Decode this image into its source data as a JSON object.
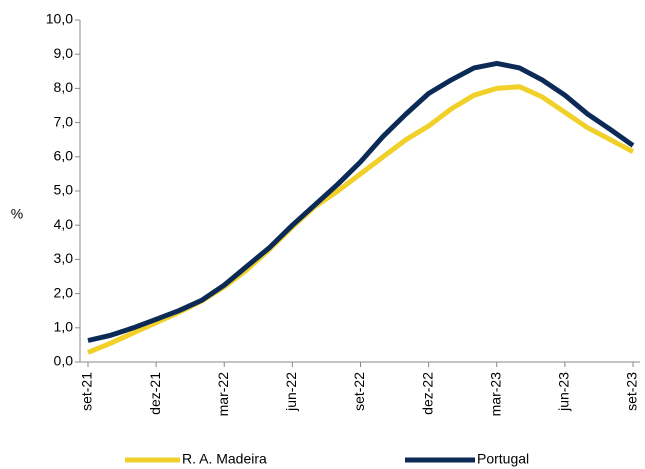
{
  "chart_data": {
    "type": "line",
    "y_label": "%",
    "categories": [
      "set-21",
      null,
      null,
      "dez-21",
      null,
      null,
      "mar-22",
      null,
      null,
      "jun-22",
      null,
      null,
      "set-22",
      null,
      null,
      "dez-22",
      null,
      null,
      "mar-23",
      null,
      null,
      "jun-23",
      null,
      null,
      "set-23"
    ],
    "series": [
      {
        "name": "R. A. Madeira",
        "color": "#f2d02a",
        "values": [
          0.28,
          0.55,
          0.85,
          1.15,
          1.45,
          1.78,
          2.2,
          2.7,
          3.3,
          3.95,
          4.55,
          5.0,
          5.5,
          6.0,
          6.5,
          6.9,
          7.4,
          7.8,
          8.0,
          8.05,
          7.75,
          7.3,
          6.85,
          6.5,
          6.15
        ]
      },
      {
        "name": "Portugal",
        "color": "#0c2a56",
        "values": [
          0.63,
          0.78,
          1.0,
          1.25,
          1.5,
          1.8,
          2.25,
          2.8,
          3.35,
          4.0,
          4.6,
          5.2,
          5.85,
          6.6,
          7.25,
          7.85,
          8.25,
          8.6,
          8.73,
          8.6,
          8.25,
          7.8,
          7.25,
          6.8,
          6.33
        ]
      }
    ],
    "ylim": [
      0,
      10
    ],
    "yticks": [
      {
        "value": 0,
        "label": "0,0"
      },
      {
        "value": 1,
        "label": "1,0"
      },
      {
        "value": 2,
        "label": "2,0"
      },
      {
        "value": 3,
        "label": "3,0"
      },
      {
        "value": 4,
        "label": "4,0"
      },
      {
        "value": 5,
        "label": "5,0"
      },
      {
        "value": 6,
        "label": "6,0"
      },
      {
        "value": 7,
        "label": "7,0"
      },
      {
        "value": 8,
        "label": "8,0"
      },
      {
        "value": 9,
        "label": "9,0"
      },
      {
        "value": 10,
        "label": "10,0"
      }
    ],
    "legend": "bottom"
  }
}
